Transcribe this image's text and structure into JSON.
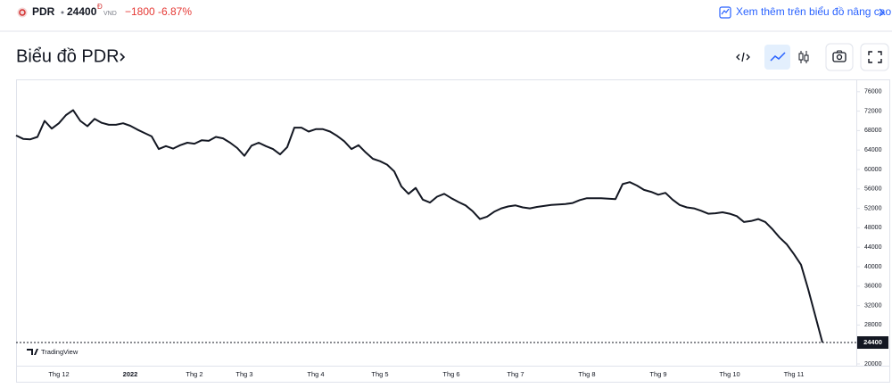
{
  "header": {
    "symbol": "PDR",
    "price": "24400",
    "currency_mark": "Đ",
    "currency": "VND",
    "change": "−1800",
    "change_percent": "-6.87%",
    "link": "Xem thêm trên biểu đồ nâng cao"
  },
  "title": "Biểu đồ PDR",
  "watermark": "TradingView",
  "chart_data": {
    "type": "line",
    "grid": false,
    "categories": [
      null,
      null,
      null,
      null,
      null,
      null,
      "Thg 12",
      null,
      null,
      null,
      null,
      null,
      null,
      null,
      null,
      null,
      "2022",
      null,
      null,
      null,
      null,
      null,
      null,
      null,
      null,
      "Thg 2",
      null,
      null,
      null,
      null,
      null,
      null,
      "Thg 3",
      null,
      null,
      null,
      null,
      null,
      null,
      null,
      null,
      null,
      "Thg 4",
      null,
      null,
      null,
      null,
      null,
      null,
      null,
      null,
      "Thg 5",
      null,
      null,
      null,
      null,
      null,
      null,
      null,
      null,
      null,
      "Thg 6",
      null,
      null,
      null,
      null,
      null,
      null,
      null,
      null,
      "Thg 7",
      null,
      null,
      null,
      null,
      null,
      null,
      null,
      null,
      null,
      "Thg 8",
      null,
      null,
      null,
      null,
      null,
      null,
      null,
      null,
      null,
      "Thg 9",
      null,
      null,
      null,
      null,
      null,
      null,
      null,
      null,
      null,
      "Thg 10",
      null,
      null,
      null,
      null,
      null,
      null,
      null,
      null,
      "Thg 11",
      null,
      null,
      null,
      null
    ],
    "series": [
      {
        "name": "PDR",
        "color": "#131722",
        "values": [
          67000,
          66300,
          66200,
          66700,
          70000,
          68400,
          69500,
          71200,
          72200,
          70000,
          68900,
          70400,
          69600,
          69200,
          69200,
          69500,
          69000,
          68200,
          67500,
          66800,
          64200,
          64800,
          64300,
          65000,
          65500,
          65300,
          66000,
          65900,
          66700,
          66400,
          65500,
          64400,
          62800,
          64900,
          65500,
          64800,
          64200,
          63100,
          64600,
          68600,
          68600,
          67800,
          68300,
          68300,
          67800,
          66900,
          65800,
          64200,
          65000,
          63500,
          62200,
          61700,
          61000,
          59600,
          56500,
          55000,
          56200,
          53800,
          53200,
          54400,
          55000,
          54100,
          53300,
          52600,
          51400,
          49800,
          50300,
          51300,
          52000,
          52400,
          52600,
          52200,
          52000,
          52300,
          52500,
          52700,
          52800,
          52900,
          53100,
          53700,
          54100,
          54100,
          54100,
          54000,
          53900,
          57000,
          57400,
          56700,
          55800,
          55400,
          54800,
          55200,
          53800,
          52700,
          52200,
          52000,
          51500,
          50900,
          51000,
          51200,
          50900,
          50400,
          49200,
          49400,
          49800,
          49200,
          47700,
          46000,
          44600,
          42600,
          40400,
          35400,
          29900,
          24400
        ]
      }
    ],
    "ylim": [
      20000,
      78350
    ],
    "yticks": [
      20000,
      24000,
      28000,
      32000,
      36000,
      40000,
      44000,
      48000,
      52000,
      56000,
      60000,
      64000,
      68000,
      72000,
      76000
    ]
  }
}
